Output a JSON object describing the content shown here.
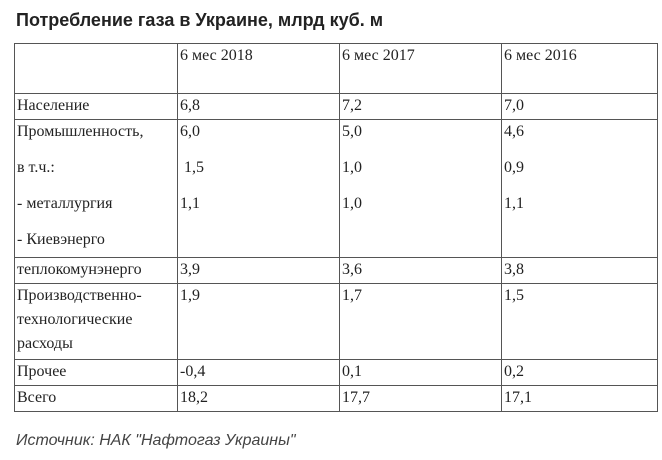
{
  "title": "Потребление газа в Украине, млрд куб. м",
  "columns": [
    "",
    "6 мес 2018",
    "6 мес 2017",
    "6 мес 2016"
  ],
  "rows": [
    {
      "label": [
        "Население"
      ],
      "values": [
        [
          "6,8"
        ],
        [
          "7,2"
        ],
        [
          "7,0"
        ]
      ]
    },
    {
      "label": [
        "Промышленность,",
        "в т.ч.:",
        "- металлургия",
        "- Киевэнерго"
      ],
      "values": [
        [
          "6,0",
          " 1,5",
          "1,1"
        ],
        [
          "5,0",
          "1,0",
          "1,0"
        ],
        [
          "4,6",
          "0,9",
          "1,1"
        ]
      ]
    },
    {
      "label": [
        "теплокомунэнерго"
      ],
      "values": [
        [
          "3,9"
        ],
        [
          "3,6"
        ],
        [
          "3,8"
        ]
      ]
    },
    {
      "label": [
        "Производственно-",
        "технологические",
        "расходы"
      ],
      "values": [
        [
          "1,9"
        ],
        [
          "1,7"
        ],
        [
          "1,5"
        ]
      ]
    },
    {
      "label": [
        "Прочее"
      ],
      "values": [
        [
          "-0,4"
        ],
        [
          "0,1"
        ],
        [
          "0,2"
        ]
      ]
    },
    {
      "label": [
        "Всего"
      ],
      "values": [
        [
          "18,2"
        ],
        [
          "17,7"
        ],
        [
          "17,1"
        ]
      ]
    }
  ],
  "source": "Источник: НАК \"Нафтогаз Украины\""
}
